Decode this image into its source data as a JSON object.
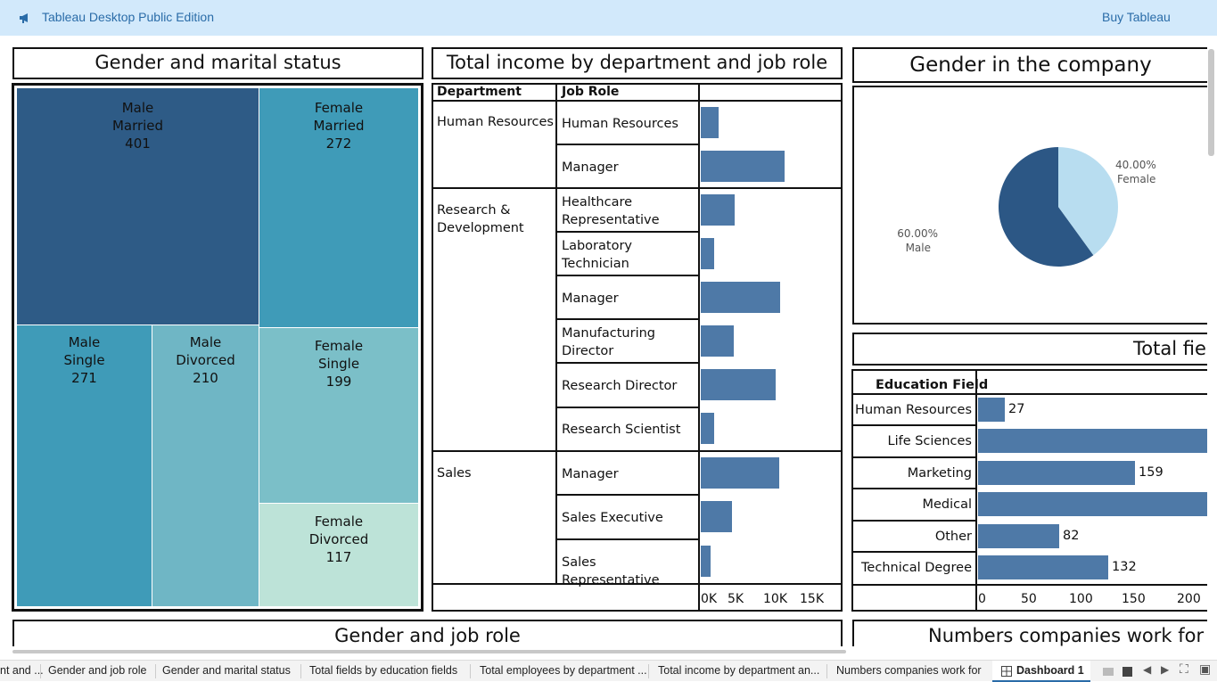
{
  "app": {
    "title": "Tableau Desktop Public Edition",
    "buy_label": "Buy Tableau"
  },
  "colors": {
    "topbar": "#d2e9fb",
    "bar": "#4e79a7",
    "pie_male": "#2c5785",
    "pie_female": "#b8ddf0"
  },
  "panels": {
    "marital_title": "Gender and marital status",
    "income_title": "Total income by department and job role",
    "gender_title": "Gender in the company",
    "fields_title": "Total fie",
    "jobrole_title": "Gender and job role",
    "companies_title": "Numbers companies work for"
  },
  "treemap": {
    "cells": [
      {
        "l1": "Male",
        "l2": "Married",
        "v": "401"
      },
      {
        "l1": "Female",
        "l2": "Married",
        "v": "272"
      },
      {
        "l1": "Male",
        "l2": "Single",
        "v": "271"
      },
      {
        "l1": "Male",
        "l2": "Divorced",
        "v": "210"
      },
      {
        "l1": "Female",
        "l2": "Single",
        "v": "199"
      },
      {
        "l1": "Female",
        "l2": "Divorced",
        "v": "117"
      }
    ]
  },
  "income": {
    "header_department": "Department",
    "header_job_role": "Job Role",
    "departments": [
      "Human Resources",
      "Research & Development",
      "Sales"
    ],
    "roles": [
      {
        "label": "Human Resources",
        "value": 2.3
      },
      {
        "label": "Manager",
        "value": 10.8
      },
      {
        "label": "Healthcare Representative",
        "value": 4.3
      },
      {
        "label": "Laboratory Technician",
        "value": 1.7
      },
      {
        "label": "Manager",
        "value": 10.2
      },
      {
        "label": "Manufacturing Director",
        "value": 4.2
      },
      {
        "label": "Research Director",
        "value": 9.6
      },
      {
        "label": "Research Scientist",
        "value": 1.7
      },
      {
        "label": "Manager",
        "value": 10.1
      },
      {
        "label": "Sales Executive",
        "value": 4.0
      },
      {
        "label": "Sales Representative",
        "value": 1.3
      }
    ],
    "axis_ticks": [
      "0K",
      "5K",
      "10K",
      "15K"
    ]
  },
  "gender_pie": {
    "male_pct": "60.00%",
    "male_label": "Male",
    "female_pct": "40.00%",
    "female_label": "Female",
    "female_share": 0.4
  },
  "education": {
    "header": "Education Field",
    "rows": [
      {
        "label": "Human Resources",
        "value": 27,
        "text": "27"
      },
      {
        "label": "Life Sciences",
        "value": 606,
        "text": ""
      },
      {
        "label": "Marketing",
        "value": 159,
        "text": "159"
      },
      {
        "label": "Medical",
        "value": 464,
        "text": ""
      },
      {
        "label": "Other",
        "value": 82,
        "text": "82"
      },
      {
        "label": "Technical Degree",
        "value": 132,
        "text": "132"
      }
    ],
    "axis_ticks": [
      "0",
      "50",
      "100",
      "150",
      "200"
    ]
  },
  "tabs": [
    "nt and ...",
    "Gender and job role",
    "Gender and marital status",
    "Total fields by education fields",
    "Total employees by department ...",
    "Total income by department an...",
    "Numbers companies work for",
    "Dashboard 1"
  ]
}
